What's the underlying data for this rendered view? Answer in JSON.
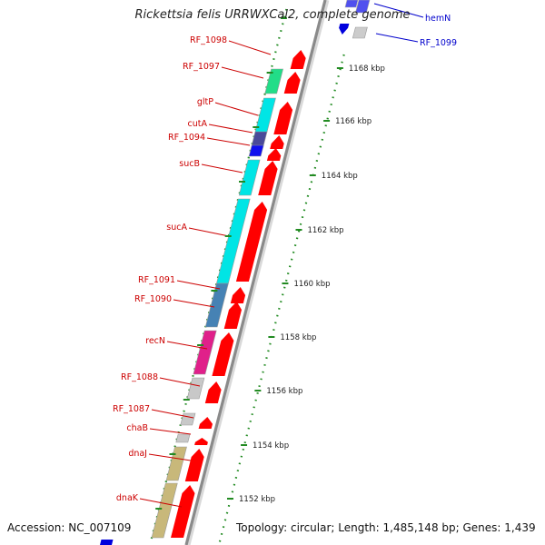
{
  "header": {
    "title": "Rickettsia felis URRWXCal2, complete genome"
  },
  "footer": {
    "accession": "Accession: NC_007109",
    "summary": "Topology: circular; Length: 1,485,148 bp; Genes: 1,439"
  },
  "colors": {
    "forward_gene_label": "#cc0000",
    "reverse_gene_label": "#0000cc",
    "cds_arrow": "#ff0000",
    "backbone": "#8a8a8a",
    "tick": "#228b22"
  },
  "genes": [
    {
      "name": "hemN",
      "strand": "reverse"
    },
    {
      "name": "RF_1099",
      "strand": "reverse"
    },
    {
      "name": "RF_1098",
      "strand": "forward"
    },
    {
      "name": "RF_1097",
      "strand": "forward"
    },
    {
      "name": "gltP",
      "strand": "forward"
    },
    {
      "name": "cutA",
      "strand": "forward"
    },
    {
      "name": "RF_1094",
      "strand": "forward"
    },
    {
      "name": "sucB",
      "strand": "forward"
    },
    {
      "name": "sucA",
      "strand": "forward"
    },
    {
      "name": "RF_1091",
      "strand": "forward"
    },
    {
      "name": "RF_1090",
      "strand": "forward"
    },
    {
      "name": "recN",
      "strand": "forward"
    },
    {
      "name": "RF_1088",
      "strand": "forward"
    },
    {
      "name": "RF_1087",
      "strand": "forward"
    },
    {
      "name": "chaB",
      "strand": "forward"
    },
    {
      "name": "dnaJ",
      "strand": "forward"
    },
    {
      "name": "dnaK",
      "strand": "forward"
    }
  ],
  "ticks": [
    "1168 kbp",
    "1166 kbp",
    "1164 kbp",
    "1162 kbp",
    "1160 kbp",
    "1158 kbp",
    "1156 kbp",
    "1154 kbp",
    "1152 kbp"
  ]
}
